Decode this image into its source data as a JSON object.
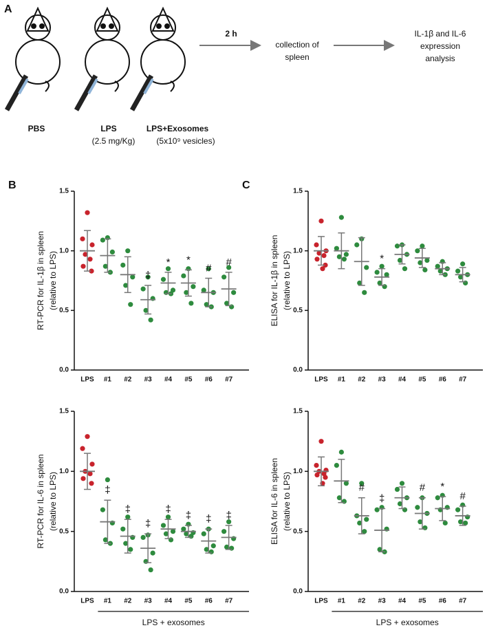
{
  "diagram": {
    "panel": "A",
    "time": "2 h",
    "step1": [
      "collection of",
      "spleen"
    ],
    "step2": [
      "IL-1β and IL-6",
      "expression",
      "analysis"
    ],
    "groups": [
      {
        "name": "PBS",
        "dose": null
      },
      {
        "name": "LPS",
        "dose": "(2.5 mg/Kg)"
      },
      {
        "name": "LPS+Exosomes",
        "dose": "(5x10⁹ vesicles)"
      }
    ]
  },
  "chart_data": [
    {
      "type": "dot",
      "panel": "B",
      "ylabel": [
        "RT-PCR for IL-1β in spleen",
        "(relative to LPS)"
      ],
      "categories": [
        "LPS",
        "#1",
        "#2",
        "#3",
        "#4",
        "#5",
        "#6",
        "#7"
      ],
      "point_colors": [
        "#c8232c",
        "#2e8b3e",
        "#2e8b3e",
        "#2e8b3e",
        "#2e8b3e",
        "#2e8b3e",
        "#2e8b3e",
        "#2e8b3e"
      ],
      "points": [
        [
          1.32,
          1.1,
          1.05,
          0.97,
          0.93,
          0.87,
          0.83
        ],
        [
          1.11,
          1.09,
          0.99,
          0.87,
          0.82
        ],
        [
          1.0,
          0.88,
          0.78,
          0.71,
          0.55
        ],
        [
          0.78,
          0.68,
          0.6,
          0.5,
          0.42
        ],
        [
          0.85,
          0.76,
          0.67,
          0.65,
          0.64
        ],
        [
          0.85,
          0.79,
          0.7,
          0.65,
          0.56
        ],
        [
          0.85,
          0.67,
          0.65,
          0.55,
          0.53
        ],
        [
          0.86,
          0.78,
          0.65,
          0.56,
          0.53
        ]
      ],
      "means": [
        1.0,
        0.96,
        0.8,
        0.59,
        0.73,
        0.73,
        0.65,
        0.68
      ],
      "sds": [
        0.17,
        0.14,
        0.15,
        0.12,
        0.09,
        0.11,
        0.12,
        0.14
      ],
      "annotations": [
        null,
        null,
        null,
        "‡",
        "*",
        "*",
        "#",
        "#"
      ],
      "ylim": [
        0,
        1.5
      ],
      "yticks": [
        {
          "value": 0,
          "label": "0.0"
        },
        {
          "value": 0.5,
          "label": "0.5"
        },
        {
          "value": 1,
          "label": "1.0"
        },
        {
          "value": 1.5,
          "label": "1.5"
        }
      ]
    },
    {
      "type": "dot",
      "ylabel": [
        "RT-PCR for IL-6 in spleen",
        "(relative to LPS)"
      ],
      "categories": [
        "LPS",
        "#1",
        "#2",
        "#3",
        "#4",
        "#5",
        "#6",
        "#7"
      ],
      "point_colors": [
        "#c8232c",
        "#2e8b3e",
        "#2e8b3e",
        "#2e8b3e",
        "#2e8b3e",
        "#2e8b3e",
        "#2e8b3e",
        "#2e8b3e"
      ],
      "points": [
        [
          1.29,
          1.19,
          1.06,
          1.0,
          0.98,
          0.94,
          0.9
        ],
        [
          0.93,
          0.68,
          0.57,
          0.43,
          0.4
        ],
        [
          0.62,
          0.52,
          0.45,
          0.4,
          0.35
        ],
        [
          0.47,
          0.45,
          0.32,
          0.25,
          0.18
        ],
        [
          0.62,
          0.55,
          0.5,
          0.48,
          0.43
        ],
        [
          0.56,
          0.52,
          0.49,
          0.48,
          0.46
        ],
        [
          0.52,
          0.48,
          0.38,
          0.35,
          0.33
        ],
        [
          0.58,
          0.5,
          0.44,
          0.37,
          0.36
        ]
      ],
      "means": [
        1.0,
        0.58,
        0.46,
        0.36,
        0.52,
        0.5,
        0.42,
        0.45
      ],
      "sds": [
        0.15,
        0.18,
        0.14,
        0.12,
        0.08,
        0.05,
        0.1,
        0.1
      ],
      "annotations": [
        null,
        "‡",
        "‡",
        "‡",
        "‡",
        "‡",
        "‡",
        "‡"
      ],
      "group_label": "LPS + exosomes",
      "ylim": [
        0,
        1.5
      ],
      "yticks": [
        {
          "value": 0,
          "label": "0.0"
        },
        {
          "value": 0.5,
          "label": "0.5"
        },
        {
          "value": 1,
          "label": "1.0"
        },
        {
          "value": 1.5,
          "label": "1.5"
        }
      ]
    },
    {
      "type": "dot",
      "panel": "C",
      "ylabel": [
        "ELISA for IL-1β in spleen",
        "(relative to LPS)"
      ],
      "categories": [
        "LPS",
        "#1",
        "#2",
        "#3",
        "#4",
        "#5",
        "#6",
        "#7"
      ],
      "point_colors": [
        "#c8232c",
        "#2e8b3e",
        "#2e8b3e",
        "#2e8b3e",
        "#2e8b3e",
        "#2e8b3e",
        "#2e8b3e",
        "#2e8b3e"
      ],
      "points": [
        [
          1.25,
          1.05,
          1.0,
          0.98,
          0.96,
          0.93,
          0.88,
          0.85
        ],
        [
          1.28,
          1.02,
          0.97,
          0.95,
          0.93
        ],
        [
          1.1,
          1.05,
          0.86,
          0.73,
          0.65
        ],
        [
          0.87,
          0.82,
          0.8,
          0.73,
          0.7
        ],
        [
          1.05,
          1.04,
          0.97,
          0.92,
          0.85
        ],
        [
          1.04,
          1.0,
          0.92,
          0.9,
          0.84
        ],
        [
          0.91,
          0.87,
          0.85,
          0.83,
          0.8
        ],
        [
          0.89,
          0.83,
          0.8,
          0.78,
          0.73
        ]
      ],
      "means": [
        1.0,
        1.0,
        0.91,
        0.78,
        0.97,
        0.94,
        0.85,
        0.8
      ],
      "sds": [
        0.12,
        0.15,
        0.2,
        0.07,
        0.08,
        0.08,
        0.05,
        0.06
      ],
      "annotations": [
        null,
        null,
        null,
        "*",
        null,
        null,
        null,
        null
      ],
      "ylim": [
        0,
        1.5
      ],
      "yticks": [
        {
          "value": 0,
          "label": "0.0"
        },
        {
          "value": 0.5,
          "label": "0.5"
        },
        {
          "value": 1,
          "label": "1.0"
        },
        {
          "value": 1.5,
          "label": "1.5"
        }
      ]
    },
    {
      "type": "dot",
      "ylabel": [
        "ELISA for IL-6 in spleen",
        "(relative to LPS)"
      ],
      "categories": [
        "LPS",
        "#1",
        "#2",
        "#3",
        "#4",
        "#5",
        "#6",
        "#7"
      ],
      "point_colors": [
        "#c8232c",
        "#2e8b3e",
        "#2e8b3e",
        "#2e8b3e",
        "#2e8b3e",
        "#2e8b3e",
        "#2e8b3e",
        "#2e8b3e"
      ],
      "points": [
        [
          1.25,
          1.05,
          1.01,
          1.0,
          0.98,
          0.97,
          0.95,
          0.9
        ],
        [
          1.16,
          1.05,
          0.9,
          0.78,
          0.75
        ],
        [
          0.9,
          0.63,
          0.6,
          0.57,
          0.5
        ],
        [
          0.7,
          0.68,
          0.52,
          0.35,
          0.33
        ],
        [
          0.9,
          0.85,
          0.78,
          0.73,
          0.68
        ],
        [
          0.78,
          0.7,
          0.65,
          0.58,
          0.53
        ],
        [
          0.8,
          0.78,
          0.7,
          0.68,
          0.57
        ],
        [
          0.72,
          0.68,
          0.62,
          0.58,
          0.57
        ]
      ],
      "means": [
        1.0,
        0.92,
        0.63,
        0.51,
        0.78,
        0.65,
        0.69,
        0.63
      ],
      "sds": [
        0.12,
        0.18,
        0.15,
        0.18,
        0.09,
        0.13,
        0.1,
        0.08
      ],
      "annotations": [
        null,
        null,
        "#",
        "‡",
        null,
        "#",
        "*",
        "#"
      ],
      "group_label": "LPS + exosomes",
      "ylim": [
        0,
        1.5
      ],
      "yticks": [
        {
          "value": 0,
          "label": "0.0"
        },
        {
          "value": 0.5,
          "label": "0.5"
        },
        {
          "value": 1,
          "label": "1.0"
        },
        {
          "value": 1.5,
          "label": "1.5"
        }
      ]
    }
  ]
}
